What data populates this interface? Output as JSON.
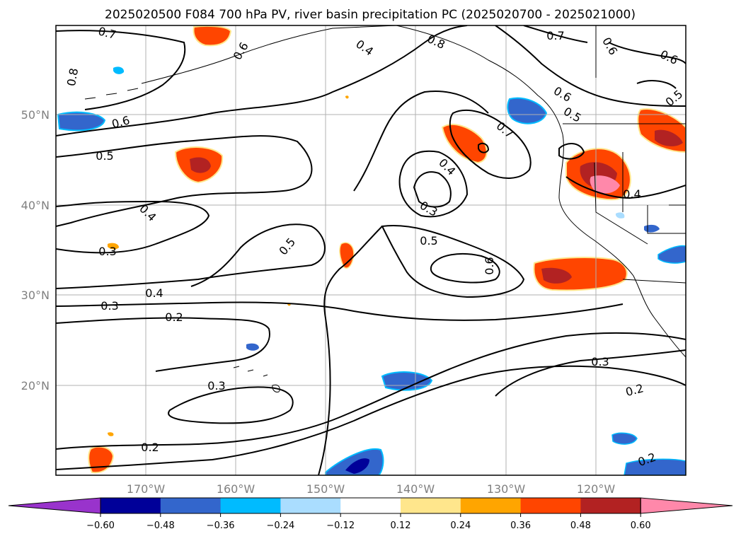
{
  "title": "2025020500 F084 700 hPa PV, river basin precipitation PC (2025020700 - 2025021000)",
  "map": {
    "lon_ticks": [
      "170°W",
      "160°W",
      "150°W",
      "140°W",
      "130°W",
      "120°W"
    ],
    "lat_ticks": [
      "50°N",
      "40°N",
      "30°N",
      "20°N"
    ],
    "grid": true
  },
  "contour_labels": [
    "0.7",
    "0.8",
    "0.6",
    "0.5",
    "0.4",
    "0.3",
    "0.3",
    "0.2",
    "0.4",
    "0.3",
    "0.2",
    "0.5",
    "0.4",
    "0.8",
    "0.6",
    "0.7",
    "0.4",
    "0.3",
    "0.5",
    "0.6",
    "0.7",
    "0.6",
    "0.6",
    "0.5",
    "0.6",
    "0.5",
    "0.4",
    "0.3",
    "0.2",
    "0.2"
  ],
  "colorbar": {
    "ticks": [
      "−0.60",
      "−0.48",
      "−0.36",
      "−0.24",
      "−0.12",
      "0.12",
      "0.24",
      "0.36",
      "0.48",
      "0.60"
    ],
    "colors": [
      "#9933cc",
      "#000099",
      "#3366cc",
      "#00bbff",
      "#aaddff",
      "#ffffff",
      "#ffe68c",
      "#ffa500",
      "#ff4500",
      "#b22222",
      "#ff88aa"
    ]
  }
}
